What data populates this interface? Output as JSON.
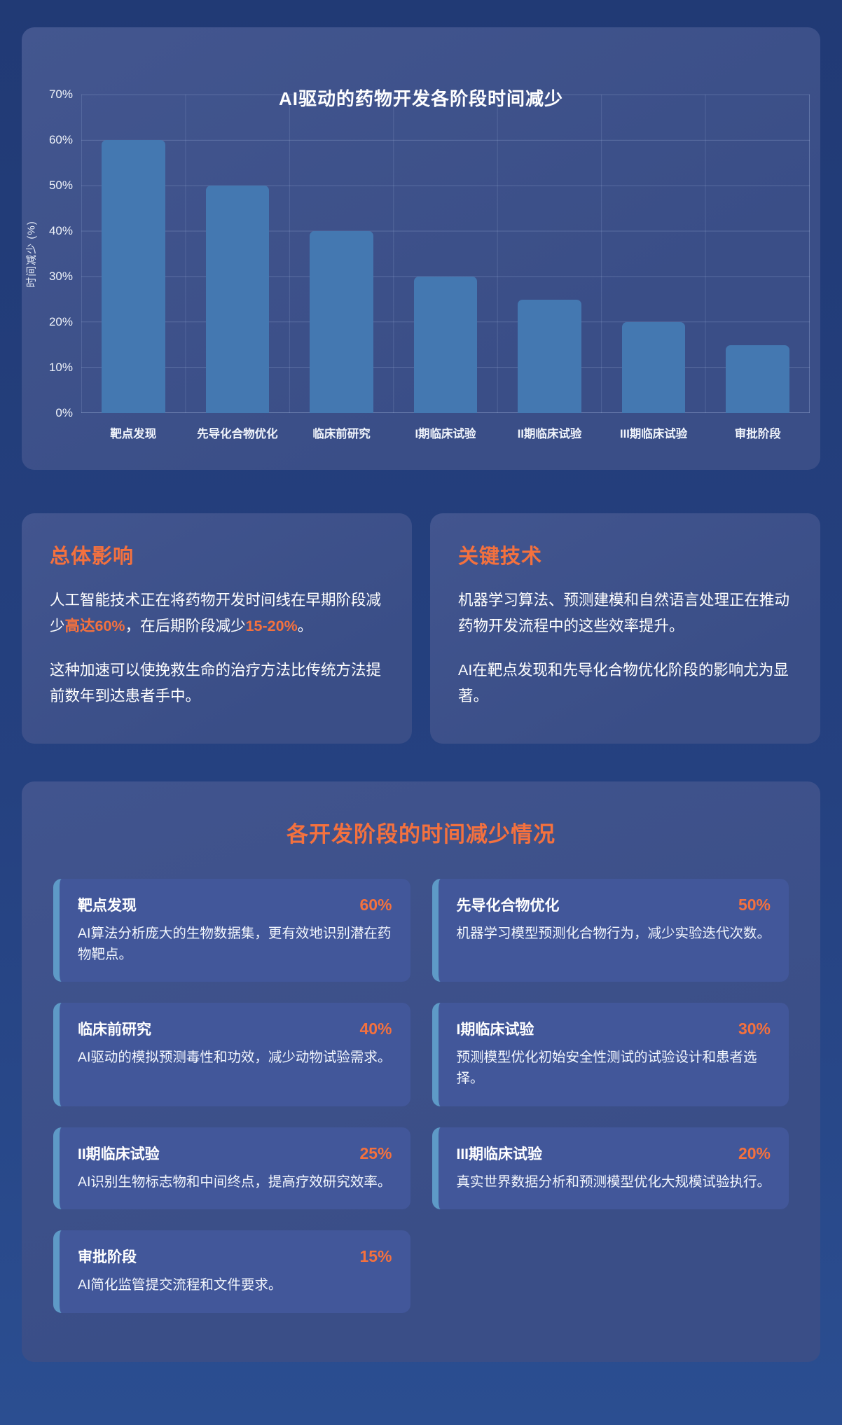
{
  "chart_data": {
    "type": "bar",
    "title": "AI驱动的药物开发各阶段时间减少",
    "categories": [
      "靶点发现",
      "先导化合物优化",
      "临床前研究",
      "I期临床试验",
      "II期临床试验",
      "III期临床试验",
      "审批阶段"
    ],
    "values": [
      60,
      50,
      40,
      30,
      25,
      20,
      15
    ],
    "xlabel": "",
    "ylabel": "时间减少 (%)",
    "ylim": [
      0,
      70
    ],
    "ytick_labels": [
      "0%",
      "10%",
      "20%",
      "30%",
      "40%",
      "50%",
      "60%",
      "70%"
    ],
    "grid": true,
    "legend": false,
    "bar_color": "#4478B1"
  },
  "impact_card": {
    "title": "总体影响",
    "paragraphs": [
      [
        {
          "t": "人工智能技术正在将药物开发时间线在早期阶段减少",
          "h": false
        },
        {
          "t": "高达60%",
          "h": true
        },
        {
          "t": "，在后期阶段减少",
          "h": false
        },
        {
          "t": "15-20%",
          "h": true
        },
        {
          "t": "。",
          "h": false
        }
      ],
      [
        {
          "t": "这种加速可以使挽救生命的治疗方法比传统方法提前数年到达患者手中。",
          "h": false
        }
      ]
    ]
  },
  "tech_card": {
    "title": "关键技术",
    "paragraphs": [
      [
        {
          "t": "机器学习算法、预测建模和自然语言处理正在推动药物开发流程中的这些效率提升。",
          "h": false
        }
      ],
      [
        {
          "t": "AI在靶点发现和先导化合物优化阶段的影响尤为显著。",
          "h": false
        }
      ]
    ]
  },
  "stages_section": {
    "title": "各开发阶段的时间减少情况",
    "stages": [
      {
        "title": "靶点发现",
        "percent": "60%",
        "description": "AI算法分析庞大的生物数据集，更有效地识别潜在药物靶点。"
      },
      {
        "title": "先导化合物优化",
        "percent": "50%",
        "description": "机器学习模型预测化合物行为，减少实验迭代次数。"
      },
      {
        "title": "临床前研究",
        "percent": "40%",
        "description": "AI驱动的模拟预测毒性和功效，减少动物试验需求。"
      },
      {
        "title": "I期临床试验",
        "percent": "30%",
        "description": "预测模型优化初始安全性测试的试验设计和患者选择。"
      },
      {
        "title": "II期临床试验",
        "percent": "25%",
        "description": "AI识别生物标志物和中间终点，提高疗效研究效率。"
      },
      {
        "title": "III期临床试验",
        "percent": "20%",
        "description": "真实世界数据分析和预测模型优化大规模试验执行。"
      },
      {
        "title": "审批阶段",
        "percent": "15%",
        "description": "AI简化监管提交流程和文件要求。"
      }
    ]
  },
  "colors": {
    "accent_orange": "#F4713E",
    "bar_blue": "#4478B1",
    "card_background": "#3B508A",
    "stage_card_background": "#42579A",
    "stage_accent_border": "#5E9AC7",
    "page_background_top": "#213A75",
    "page_background_bottom": "#2B4E91"
  }
}
